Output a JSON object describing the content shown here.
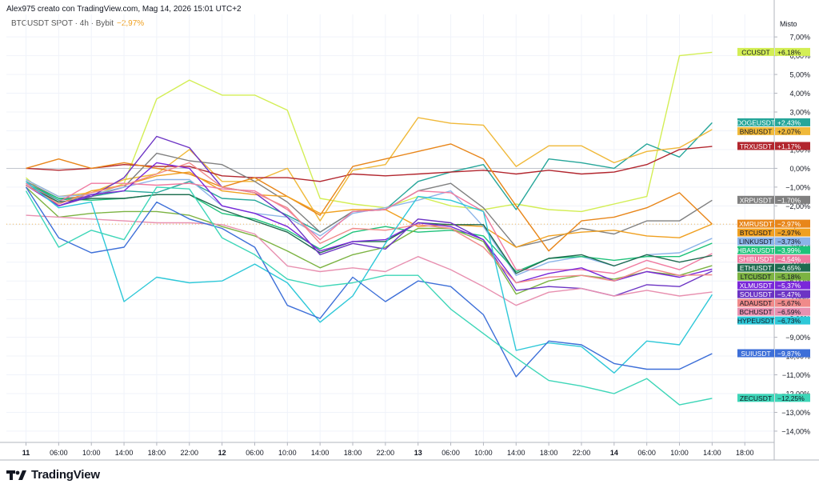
{
  "header": {
    "info_line": "Alex975 creato con TradingView.com, Mag 14, 2026 15:01 UTC+2",
    "symbol": "BTCUSDT SPOT · 4h · Bybit",
    "change": "−2,97%"
  },
  "brand": {
    "logo_text": "TradingView",
    "logo_icon": "tradingview-logo-icon"
  },
  "chart_data": {
    "type": "line",
    "scale_label": "Misto",
    "ylabel": "",
    "ylim": [
      -14.6,
      8.2
    ],
    "y_ticks": [
      {
        "v": 7,
        "label": "7,00%"
      },
      {
        "v": 6,
        "label": "6,00%"
      },
      {
        "v": 5,
        "label": "5,00%"
      },
      {
        "v": 4,
        "label": "4,00%"
      },
      {
        "v": 3,
        "label": "3,00%"
      },
      {
        "v": 2,
        "label": "2,00%"
      },
      {
        "v": 1,
        "label": "1,00%"
      },
      {
        "v": 0,
        "label": "0,00%"
      },
      {
        "v": -1,
        "label": "−1,00%"
      },
      {
        "v": -2,
        "label": "−2,00%"
      },
      {
        "v": -3,
        "label": "−3,00%"
      },
      {
        "v": -4,
        "label": "−4,00%"
      },
      {
        "v": -5,
        "label": "−5,00%"
      },
      {
        "v": -6,
        "label": "−6,00%"
      },
      {
        "v": -7,
        "label": "−7,00%"
      },
      {
        "v": -8,
        "label": "−8,00%"
      },
      {
        "v": -9,
        "label": "−9,00%"
      },
      {
        "v": -10,
        "label": "−10,00%"
      },
      {
        "v": -11,
        "label": "−11,00%"
      },
      {
        "v": -12,
        "label": "−12,00%"
      },
      {
        "v": -13,
        "label": "−13,00%"
      },
      {
        "v": -14,
        "label": "−14,00%"
      }
    ],
    "x_ticks": [
      {
        "i": 0,
        "label": "11",
        "bold": true
      },
      {
        "i": 1,
        "label": "06:00"
      },
      {
        "i": 2,
        "label": "10:00"
      },
      {
        "i": 3,
        "label": "14:00"
      },
      {
        "i": 4,
        "label": "18:00"
      },
      {
        "i": 5,
        "label": "22:00"
      },
      {
        "i": 6,
        "label": "12",
        "bold": true
      },
      {
        "i": 7,
        "label": "06:00"
      },
      {
        "i": 8,
        "label": "10:00"
      },
      {
        "i": 9,
        "label": "14:00"
      },
      {
        "i": 10,
        "label": "18:00"
      },
      {
        "i": 11,
        "label": "22:00"
      },
      {
        "i": 12,
        "label": "13",
        "bold": true
      },
      {
        "i": 13,
        "label": "06:00"
      },
      {
        "i": 14,
        "label": "10:00"
      },
      {
        "i": 15,
        "label": "14:00"
      },
      {
        "i": 16,
        "label": "18:00"
      },
      {
        "i": 17,
        "label": "22:00"
      },
      {
        "i": 18,
        "label": "14",
        "bold": true
      },
      {
        "i": 19,
        "label": "06:00"
      },
      {
        "i": 20,
        "label": "10:00"
      },
      {
        "i": 21,
        "label": "14:00"
      },
      {
        "i": 22,
        "label": "18:00"
      }
    ],
    "x_range": [
      -0.6,
      22.9
    ],
    "baseline_level": 0,
    "btc_level": -2.97,
    "series": [
      {
        "name": "CCUSDT",
        "label": "+6,18%",
        "color": "#d3ee55",
        "label_text": "#131722",
        "x": [
          0,
          1,
          2,
          3,
          4,
          5,
          6,
          7,
          8,
          9,
          10,
          11,
          12,
          13,
          14,
          15,
          16,
          17,
          18,
          19,
          20,
          21
        ],
        "values": [
          -0.5,
          -2.0,
          -1.5,
          -0.8,
          3.7,
          4.7,
          3.9,
          3.9,
          3.1,
          -1.6,
          -1.9,
          -2.1,
          -1.5,
          -2.0,
          -2.2,
          -1.9,
          -2.2,
          -2.3,
          -1.9,
          -1.5,
          6.0,
          6.18
        ]
      },
      {
        "name": "DOGEUSDT",
        "label": "+2,43%",
        "color": "#26a69a",
        "label_text": "#ffffff",
        "x": [
          0,
          1,
          2,
          3,
          4,
          5,
          6,
          7,
          8,
          9,
          10,
          11,
          12,
          13,
          14,
          15,
          16,
          17,
          18,
          19,
          20,
          21
        ],
        "values": [
          -0.8,
          -1.7,
          -1.5,
          -1.2,
          -1.3,
          -0.7,
          -1.6,
          -1.7,
          -2.5,
          -3.4,
          -2.3,
          -2.2,
          -0.7,
          -0.2,
          0.2,
          -2.2,
          0.5,
          0.3,
          0.0,
          1.3,
          0.6,
          2.43
        ]
      },
      {
        "name": "BNBUSDT",
        "label": "+2,07%",
        "color": "#f0b93a",
        "label_text": "#131722",
        "x": [
          0,
          1,
          2,
          3,
          4,
          5,
          6,
          7,
          8,
          9,
          10,
          11,
          12,
          13,
          14,
          15,
          16,
          17,
          18,
          19,
          20,
          21
        ],
        "values": [
          -0.6,
          -1.5,
          -1.3,
          -0.6,
          -0.3,
          1.0,
          -0.7,
          -0.7,
          0.0,
          -2.8,
          -0.1,
          0.2,
          2.7,
          2.4,
          2.3,
          0.1,
          1.2,
          1.2,
          0.3,
          0.9,
          1.1,
          2.07
        ]
      },
      {
        "name": "TRXUSDT",
        "label": "+1,17%",
        "color": "#b2262e",
        "label_text": "#ffffff",
        "x": [
          0,
          1,
          2,
          3,
          4,
          5,
          6,
          7,
          8,
          9,
          10,
          11,
          12,
          13,
          14,
          15,
          16,
          17,
          18,
          19,
          20,
          21
        ],
        "values": [
          0.0,
          -0.1,
          0.0,
          0.2,
          0.1,
          0.1,
          -0.4,
          -0.5,
          -0.5,
          -0.7,
          -0.3,
          -0.4,
          -0.3,
          -0.2,
          -0.1,
          -0.3,
          -0.1,
          -0.3,
          -0.2,
          0.2,
          1.0,
          1.17
        ]
      },
      {
        "name": "XRPUSDT",
        "label": "−1,70%",
        "color": "#808080",
        "label_text": "#ffffff",
        "x": [
          0,
          1,
          2,
          3,
          4,
          5,
          6,
          7,
          8,
          9,
          10,
          11,
          12,
          13,
          14,
          15,
          16,
          17,
          18,
          19,
          20,
          21
        ],
        "values": [
          -0.7,
          -1.6,
          -1.5,
          -1.0,
          0.8,
          0.4,
          0.2,
          -0.7,
          -1.8,
          -3.4,
          -2.3,
          -2.2,
          -1.2,
          -0.8,
          -2.1,
          -4.2,
          -3.8,
          -3.2,
          -3.5,
          -2.8,
          -2.8,
          -1.7
        ]
      },
      {
        "name": "XMRUSDT",
        "label": "−2,97%",
        "color": "#e8861a",
        "label_text": "#ffffff",
        "x": [
          0,
          1,
          2,
          3,
          4,
          5,
          6,
          7,
          8,
          9,
          10,
          11,
          12,
          13,
          14,
          15,
          16,
          17,
          18,
          19,
          20,
          21
        ],
        "values": [
          0.0,
          0.5,
          0.0,
          0.3,
          0.0,
          -0.3,
          -1.0,
          -0.5,
          -1.5,
          -2.5,
          0.1,
          0.5,
          0.9,
          1.3,
          0.5,
          -2.0,
          -4.4,
          -2.8,
          -2.6,
          -2.1,
          -1.3,
          -2.97
        ]
      },
      {
        "name": "BTCUSDT",
        "label": "−2,97%",
        "color": "#f0a020",
        "label_text": "#131722",
        "x": [
          0,
          1,
          2,
          3,
          4,
          5,
          6,
          7,
          8,
          9,
          10,
          11,
          12,
          13,
          14,
          15,
          16,
          17,
          18,
          19,
          20,
          21
        ],
        "values": [
          -0.9,
          -1.9,
          -1.2,
          -0.9,
          -0.4,
          -0.2,
          -1.2,
          -1.4,
          -1.5,
          -2.4,
          -2.2,
          -2.2,
          -3.1,
          -3.0,
          -3.1,
          -4.2,
          -3.6,
          -3.4,
          -3.3,
          -3.6,
          -3.7,
          -2.97
        ]
      },
      {
        "name": "LINKUSDT",
        "label": "−3,73%",
        "color": "#8cb4e8",
        "label_text": "#131722",
        "x": [
          0,
          1,
          2,
          3,
          4,
          5,
          6,
          7,
          8,
          9,
          10,
          11,
          12,
          13,
          14,
          15,
          16,
          17,
          18,
          19,
          20,
          21
        ],
        "values": [
          -0.6,
          -1.5,
          -1.4,
          -1.0,
          -0.6,
          -0.6,
          -2.0,
          -2.4,
          -2.6,
          -3.6,
          -2.4,
          -2.1,
          -1.7,
          -1.2,
          -3.1,
          -5.7,
          -5.0,
          -4.7,
          -5.2,
          -4.6,
          -4.5,
          -3.73
        ]
      },
      {
        "name": "HBARUSDT",
        "label": "−3,99%",
        "color": "#1ec27a",
        "label_text": "#ffffff",
        "x": [
          0,
          1,
          2,
          3,
          4,
          5,
          6,
          7,
          8,
          9,
          10,
          11,
          12,
          13,
          14,
          15,
          16,
          17,
          18,
          19,
          20,
          21
        ],
        "values": [
          -0.8,
          -1.6,
          -1.7,
          -1.6,
          -1.4,
          -1.4,
          -2.4,
          -2.7,
          -3.3,
          -4.3,
          -3.4,
          -3.1,
          -3.4,
          -3.3,
          -3.6,
          -5.5,
          -4.8,
          -4.7,
          -4.9,
          -4.7,
          -4.7,
          -3.99
        ]
      },
      {
        "name": "SHIBUSDT",
        "label": "−4,54%",
        "color": "#f07aa0",
        "label_text": "#ffffff",
        "x": [
          0,
          1,
          2,
          3,
          4,
          5,
          6,
          7,
          8,
          9,
          10,
          11,
          12,
          13,
          14,
          15,
          16,
          17,
          18,
          19,
          20,
          21
        ],
        "values": [
          -0.8,
          -1.8,
          -0.8,
          -0.8,
          -0.9,
          -0.8,
          -1.1,
          -1.2,
          -2.2,
          -3.8,
          -2.3,
          -2.2,
          -1.2,
          -1.3,
          -2.3,
          -5.4,
          -5.4,
          -5.4,
          -5.6,
          -4.9,
          -5.4,
          -4.54
        ]
      },
      {
        "name": "ETHUSDT",
        "label": "−4,65%",
        "color": "#1f6b4f",
        "label_text": "#ffffff",
        "x": [
          0,
          1,
          2,
          3,
          4,
          5,
          6,
          7,
          8,
          9,
          10,
          11,
          12,
          13,
          14,
          15,
          16,
          17,
          18,
          19,
          20,
          21
        ],
        "values": [
          -0.9,
          -1.8,
          -1.6,
          -1.6,
          -1.4,
          -1.4,
          -2.2,
          -2.8,
          -3.4,
          -4.5,
          -3.9,
          -3.9,
          -2.9,
          -3.0,
          -3.0,
          -5.6,
          -4.8,
          -4.6,
          -5.2,
          -4.6,
          -5.0,
          -4.65
        ]
      },
      {
        "name": "LTCUSDT",
        "label": "−5,18%",
        "color": "#7cb342",
        "label_text": "#131722",
        "x": [
          0,
          1,
          2,
          3,
          4,
          5,
          6,
          7,
          8,
          9,
          10,
          11,
          12,
          13,
          14,
          15,
          16,
          17,
          18,
          19,
          20,
          21
        ],
        "values": [
          -1.0,
          -2.6,
          -2.4,
          -2.3,
          -2.3,
          -2.5,
          -3.1,
          -3.6,
          -4.4,
          -5.3,
          -4.6,
          -4.2,
          -3.2,
          -3.2,
          -3.9,
          -6.7,
          -6.0,
          -5.7,
          -5.9,
          -5.5,
          -5.7,
          -5.18
        ]
      },
      {
        "name": "SOLUSDT",
        "label": "−5,47%",
        "color": "#6c34c4",
        "label_text": "#ffffff",
        "x": [
          0,
          1,
          2,
          3,
          4,
          5,
          6,
          7,
          8,
          9,
          10,
          11,
          12,
          13,
          14,
          15,
          16,
          17,
          18,
          19,
          20,
          21
        ],
        "values": [
          -0.9,
          -2.0,
          -1.5,
          -0.5,
          1.7,
          1.1,
          -1.0,
          -1.3,
          -2.6,
          -4.6,
          -4.0,
          -4.3,
          -2.7,
          -2.9,
          -3.8,
          -6.5,
          -6.3,
          -6.4,
          -6.8,
          -6.2,
          -6.3,
          -5.47
        ]
      },
      {
        "name": "XLMUSDT",
        "label": "−5,37%",
        "color": "#7a28d9",
        "label_text": "#ffffff",
        "x": [
          0,
          1,
          2,
          3,
          4,
          5,
          6,
          7,
          8,
          9,
          10,
          11,
          12,
          13,
          14,
          15,
          16,
          17,
          18,
          19,
          20,
          21
        ],
        "values": [
          -0.9,
          -2.0,
          -1.4,
          -1.2,
          0.3,
          0.0,
          -2.0,
          -2.4,
          -3.1,
          -4.4,
          -3.9,
          -3.8,
          -2.9,
          -3.1,
          -3.8,
          -6.1,
          -5.6,
          -5.3,
          -6.0,
          -5.5,
          -5.8,
          -5.37
        ]
      },
      {
        "name": "ADAUSDT",
        "label": "−5,67%",
        "color": "#f08a8a",
        "label_text": "#131722",
        "x": [
          0,
          1,
          2,
          3,
          4,
          5,
          6,
          7,
          8,
          9,
          10,
          11,
          12,
          13,
          14,
          15,
          16,
          17,
          18,
          19,
          20,
          21
        ],
        "values": [
          -0.9,
          -1.9,
          -1.3,
          -0.9,
          -0.3,
          0.3,
          -1.0,
          -1.3,
          -2.1,
          -4.0,
          -3.2,
          -3.3,
          -3.0,
          -3.2,
          -4.2,
          -6.1,
          -5.8,
          -5.7,
          -6.0,
          -5.3,
          -5.7,
          -5.67
        ]
      },
      {
        "name": "BCHUSDT",
        "label": "−6,59%",
        "color": "#e890b0",
        "label_text": "#131722",
        "x": [
          0,
          1,
          2,
          3,
          4,
          5,
          6,
          7,
          8,
          9,
          10,
          11,
          12,
          13,
          14,
          15,
          16,
          17,
          18,
          19,
          20,
          21
        ],
        "values": [
          -2.5,
          -2.6,
          -2.7,
          -2.8,
          -2.9,
          -2.9,
          -3.0,
          -3.5,
          -5.2,
          -5.5,
          -5.3,
          -5.5,
          -4.7,
          -5.4,
          -6.3,
          -7.3,
          -6.6,
          -6.4,
          -6.8,
          -6.5,
          -6.8,
          -6.59
        ]
      },
      {
        "name": "HYPEUSDT",
        "label": "−6,73%",
        "color": "#2ec8d8",
        "label_text": "#131722",
        "x": [
          0,
          1,
          2,
          3,
          4,
          5,
          6,
          7,
          8,
          9,
          10,
          11,
          12,
          13,
          14,
          15,
          16,
          17,
          18,
          19,
          20,
          21
        ],
        "values": [
          -0.7,
          -2.1,
          -1.8,
          -7.1,
          -5.8,
          -6.1,
          -6.0,
          -5.1,
          -6.1,
          -8.2,
          -6.8,
          -4.0,
          -1.5,
          -1.7,
          -2.3,
          -9.7,
          -9.3,
          -9.5,
          -10.9,
          -9.2,
          -9.4,
          -6.73
        ]
      },
      {
        "name": "SUIUSDT",
        "label": "−9,87%",
        "color": "#3d6fd8",
        "label_text": "#ffffff",
        "x": [
          0,
          1,
          2,
          3,
          4,
          5,
          6,
          7,
          8,
          9,
          10,
          11,
          12,
          13,
          14,
          15,
          16,
          17,
          18,
          19,
          20,
          21
        ],
        "values": [
          -1.0,
          -3.7,
          -4.5,
          -4.2,
          -1.8,
          -2.7,
          -3.2,
          -4.2,
          -7.3,
          -8.0,
          -5.8,
          -7.1,
          -6.0,
          -6.3,
          -7.8,
          -11.1,
          -9.2,
          -9.4,
          -10.4,
          -10.7,
          -10.7,
          -9.87
        ]
      },
      {
        "name": "ZECUSDT",
        "label": "−12,25%",
        "color": "#3ed6b8",
        "label_text": "#131722",
        "x": [
          0,
          1,
          2,
          3,
          4,
          5,
          6,
          7,
          8,
          9,
          10,
          11,
          12,
          13,
          14,
          15,
          16,
          17,
          18,
          19,
          20,
          21
        ],
        "values": [
          -1.2,
          -4.2,
          -3.3,
          -3.8,
          -1.0,
          -1.1,
          -3.7,
          -4.6,
          -5.9,
          -6.3,
          -6.1,
          -5.7,
          -5.7,
          -7.5,
          -8.8,
          -10.1,
          -11.3,
          -11.6,
          -12.0,
          -11.2,
          -12.6,
          -12.25
        ]
      }
    ],
    "labels_order": [
      "CCUSDT",
      "DOGEUSDT",
      "BNBUSDT",
      "TRXUSDT",
      "XRPUSDT",
      "XMRUSDT",
      "BTCUSDT",
      "LINKUSDT",
      "HBARUSDT",
      "SHIBUSDT",
      "ETHUSDT",
      "LTCUSDT",
      "XLMUSDT",
      "SOLUSDT",
      "ADAUSDT",
      "BCHUSDT",
      "HYPEUSDT",
      "SUIUSDT",
      "ZECUSDT"
    ]
  }
}
